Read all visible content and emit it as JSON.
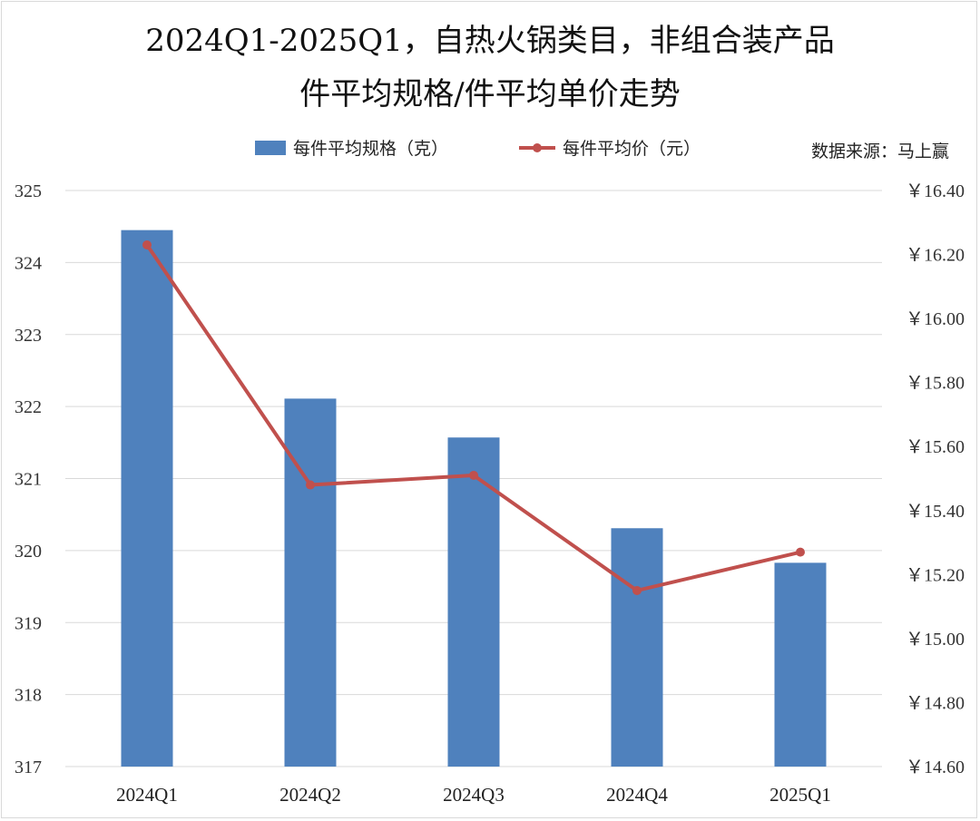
{
  "chart_data": {
    "type": "bar",
    "title_line1": "2024Q1-2025Q1，自热火锅类目，非组合装产品",
    "title_line2": "件平均规格/件平均单价走势",
    "source": "数据来源：马上赢",
    "categories": [
      "2024Q1",
      "2024Q2",
      "2024Q3",
      "2024Q4",
      "2025Q1"
    ],
    "series": [
      {
        "name": "每件平均规格（克）",
        "type": "bar",
        "axis": "left",
        "color": "#4f81bd",
        "values": [
          324.45,
          322.11,
          321.57,
          320.31,
          319.83
        ]
      },
      {
        "name": "每件平均价（元）",
        "type": "line",
        "axis": "right",
        "color": "#c0504d",
        "values": [
          16.23,
          15.48,
          15.51,
          15.15,
          15.27
        ]
      }
    ],
    "y_left": {
      "lim": [
        317,
        325
      ],
      "ticks": [
        "317",
        "318",
        "319",
        "320",
        "321",
        "322",
        "323",
        "324",
        "325"
      ]
    },
    "y_right": {
      "lim": [
        14.6,
        16.4
      ],
      "ticks": [
        "￥14.60",
        "￥14.80",
        "￥15.00",
        "￥15.20",
        "￥15.40",
        "￥15.60",
        "￥15.80",
        "￥16.00",
        "￥16.20",
        "￥16.40"
      ]
    },
    "grid": true,
    "legend_position": "top"
  }
}
